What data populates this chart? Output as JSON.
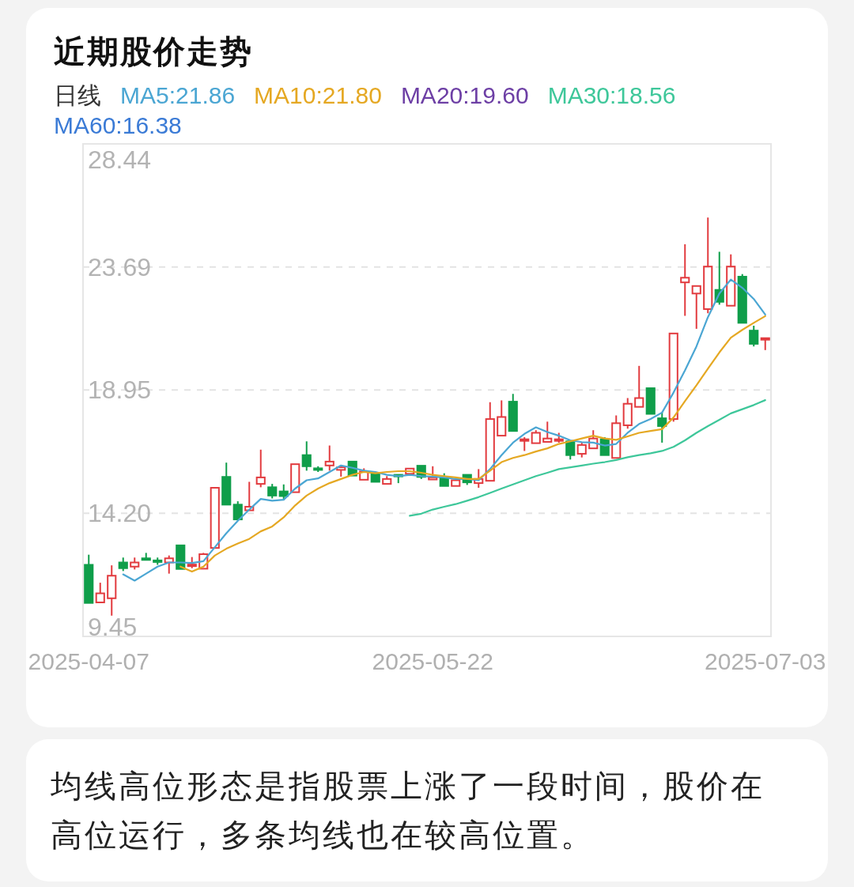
{
  "chart_data": {
    "type": "candlestick",
    "title": "近期股价走势",
    "legend_title": "日线",
    "legend": "top",
    "grid": "y",
    "categories": [
      "2025-04-07",
      null,
      null,
      null,
      null,
      null,
      null,
      null,
      null,
      null,
      null,
      null,
      null,
      null,
      null,
      null,
      null,
      null,
      null,
      null,
      null,
      null,
      null,
      null,
      null,
      null,
      null,
      null,
      null,
      null,
      "2025-05-22",
      null,
      null,
      null,
      null,
      null,
      null,
      null,
      null,
      null,
      null,
      null,
      null,
      null,
      null,
      null,
      null,
      null,
      null,
      null,
      null,
      null,
      null,
      null,
      null,
      null,
      null,
      null,
      null,
      "2025-07-03"
    ],
    "ohlc": [
      [
        12.21,
        12.6,
        10.74,
        10.74
      ],
      [
        10.76,
        11.52,
        10.76,
        11.11
      ],
      [
        10.92,
        12.19,
        10.25,
        11.79
      ],
      [
        12.3,
        12.49,
        11.97,
        12.08
      ],
      [
        12.14,
        12.49,
        12.03,
        12.3
      ],
      [
        12.46,
        12.67,
        12.42,
        12.42
      ],
      [
        12.38,
        12.49,
        12.21,
        12.34
      ],
      [
        12.3,
        12.57,
        11.87,
        12.46
      ],
      [
        12.96,
        12.96,
        12.05,
        12.05
      ],
      [
        12.16,
        12.51,
        12.08,
        12.22
      ],
      [
        12.06,
        12.67,
        12.06,
        12.62
      ],
      [
        12.86,
        15.18,
        12.86,
        15.18
      ],
      [
        15.6,
        16.15,
        14.53,
        14.53
      ],
      [
        14.53,
        14.66,
        13.96,
        13.96
      ],
      [
        14.31,
        15.41,
        14.31,
        14.45
      ],
      [
        15.33,
        16.65,
        15.2,
        15.58
      ],
      [
        15.2,
        15.33,
        14.77,
        14.88
      ],
      [
        15.04,
        15.31,
        14.72,
        14.86
      ],
      [
        15.01,
        16.09,
        15.01,
        16.09
      ],
      [
        16.44,
        16.97,
        15.84,
        16.01
      ],
      [
        15.93,
        16.01,
        15.79,
        15.88
      ],
      [
        16.04,
        16.81,
        15.84,
        16.19
      ],
      [
        15.87,
        16.06,
        15.61,
        15.97
      ],
      [
        16.19,
        16.19,
        15.65,
        15.65
      ],
      [
        15.49,
        15.93,
        15.49,
        15.81
      ],
      [
        15.74,
        15.74,
        15.41,
        15.41
      ],
      [
        15.33,
        15.63,
        15.33,
        15.52
      ],
      [
        15.68,
        15.68,
        15.36,
        15.63
      ],
      [
        15.72,
        15.92,
        15.72,
        15.92
      ],
      [
        16.03,
        16.03,
        15.52,
        15.6
      ],
      [
        15.5,
        16.01,
        15.5,
        15.58
      ],
      [
        15.58,
        15.74,
        15.25,
        15.25
      ],
      [
        15.25,
        15.47,
        15.25,
        15.47
      ],
      [
        15.68,
        15.68,
        15.29,
        15.39
      ],
      [
        15.36,
        15.9,
        15.18,
        15.52
      ],
      [
        15.45,
        18.48,
        15.45,
        17.83
      ],
      [
        17.19,
        18.55,
        17.19,
        17.91
      ],
      [
        18.5,
        18.8,
        17.37,
        17.37
      ],
      [
        17.01,
        17.13,
        16.6,
        17.05
      ],
      [
        16.9,
        17.4,
        16.9,
        17.3
      ],
      [
        16.95,
        17.73,
        16.95,
        17.08
      ],
      [
        17.01,
        17.3,
        16.92,
        17.05
      ],
      [
        16.97,
        16.97,
        16.27,
        16.44
      ],
      [
        16.49,
        16.92,
        16.35,
        16.83
      ],
      [
        16.7,
        17.4,
        16.7,
        17.08
      ],
      [
        17.05,
        17.13,
        16.44,
        16.44
      ],
      [
        16.33,
        17.97,
        16.33,
        17.67
      ],
      [
        17.59,
        18.64,
        17.46,
        18.42
      ],
      [
        18.3,
        19.88,
        18.3,
        18.64
      ],
      [
        19.02,
        19.02,
        18.03,
        18.03
      ],
      [
        17.86,
        18.1,
        16.92,
        17.56
      ],
      [
        17.83,
        21.13,
        17.73,
        21.13
      ],
      [
        23.1,
        24.57,
        21.81,
        23.28
      ],
      [
        22.67,
        22.96,
        21.31,
        22.96
      ],
      [
        22.07,
        25.6,
        21.91,
        23.71
      ],
      [
        22.81,
        24.28,
        22.24,
        22.35
      ],
      [
        22.2,
        24.18,
        22.2,
        23.71
      ],
      [
        23.32,
        23.42,
        21.54,
        21.54
      ],
      [
        21.24,
        21.43,
        20.63,
        20.73
      ],
      [
        20.9,
        20.95,
        20.49,
        20.95
      ]
    ],
    "colors": [
      "#0f9e4a",
      "#e23b3f",
      "#e23b3f",
      "#0f9e4a",
      "#e23b3f",
      "#0f9e4a",
      "#0f9e4a",
      "#e23b3f",
      "#0f9e4a",
      "#e23b3f",
      "#e23b3f",
      "#e23b3f",
      "#0f9e4a",
      "#0f9e4a",
      "#e23b3f",
      "#e23b3f",
      "#0f9e4a",
      "#0f9e4a",
      "#e23b3f",
      "#0f9e4a",
      "#0f9e4a",
      "#e23b3f",
      "#e23b3f",
      "#0f9e4a",
      "#e23b3f",
      "#0f9e4a",
      "#e23b3f",
      "#0f9e4a",
      "#e23b3f",
      "#0f9e4a",
      "#e23b3f",
      "#0f9e4a",
      "#e23b3f",
      "#0f9e4a",
      "#e23b3f",
      "#e23b3f",
      "#e23b3f",
      "#0f9e4a",
      "#e23b3f",
      "#e23b3f",
      "#e23b3f",
      "#e23b3f",
      "#0f9e4a",
      "#e23b3f",
      "#e23b3f",
      "#0f9e4a",
      "#e23b3f",
      "#e23b3f",
      "#e23b3f",
      "#0f9e4a",
      "#0f9e4a",
      "#e23b3f",
      "#e23b3f",
      "#e23b3f",
      "#e23b3f",
      "#0f9e4a",
      "#e23b3f",
      "#0f9e4a",
      "#0f9e4a",
      "#e23b3f"
    ],
    "series": [
      {
        "name": "MA5:21.86",
        "type": "line",
        "color": "#4ba6d3",
        "values": [
          null,
          null,
          null,
          11.84,
          11.6,
          11.87,
          12.14,
          12.3,
          12.3,
          12.28,
          12.35,
          12.89,
          13.43,
          13.91,
          14.34,
          14.75,
          14.68,
          14.72,
          15.15,
          15.47,
          15.54,
          15.79,
          16.04,
          15.95,
          15.84,
          15.79,
          15.68,
          15.63,
          15.68,
          15.63,
          15.61,
          15.58,
          15.52,
          15.52,
          15.47,
          15.9,
          16.44,
          16.92,
          17.26,
          17.51,
          17.33,
          17.19,
          17.01,
          16.94,
          16.92,
          16.81,
          16.87,
          17.3,
          17.64,
          17.83,
          18.08,
          18.85,
          19.71,
          20.63,
          21.76,
          22.67,
          23.21,
          22.89,
          22.46,
          21.86
        ]
      },
      {
        "name": "MA10:21.80",
        "type": "line",
        "color": "#e5a823",
        "values": [
          null,
          null,
          null,
          null,
          null,
          null,
          null,
          null,
          12.14,
          11.95,
          12.14,
          12.57,
          12.83,
          13.03,
          13.21,
          13.5,
          13.69,
          14.04,
          14.5,
          14.88,
          15.15,
          15.36,
          15.52,
          15.68,
          15.79,
          15.74,
          15.79,
          15.82,
          15.82,
          15.76,
          15.68,
          15.63,
          15.58,
          15.52,
          15.52,
          15.84,
          16.17,
          16.33,
          16.44,
          16.58,
          16.7,
          16.87,
          16.97,
          17.08,
          17.19,
          17.08,
          17.03,
          17.16,
          17.3,
          17.37,
          17.44,
          17.89,
          18.52,
          19.13,
          19.77,
          20.4,
          20.97,
          21.27,
          21.54,
          21.8
        ]
      },
      {
        "name": "MA20:19.60",
        "type": "line",
        "color": "#6d3fa5",
        "values": [
          null,
          null,
          null,
          null,
          null,
          null,
          null,
          null,
          null,
          null,
          null,
          null,
          null,
          null,
          null,
          null,
          null,
          null,
          null,
          null,
          null,
          null,
          null,
          null,
          null,
          null,
          null,
          null,
          null,
          null,
          null,
          null,
          null,
          null,
          null,
          null,
          null,
          null,
          null,
          null,
          null,
          null,
          null,
          null,
          null,
          null,
          null,
          null,
          null,
          null,
          null,
          null,
          null,
          null,
          null,
          null,
          null,
          null,
          null,
          null
        ]
      },
      {
        "name": "MA30:18.56",
        "type": "line",
        "color": "#3ec79a",
        "values": [
          null,
          null,
          null,
          null,
          null,
          null,
          null,
          null,
          null,
          null,
          null,
          null,
          null,
          null,
          null,
          null,
          null,
          null,
          null,
          null,
          null,
          null,
          null,
          null,
          null,
          null,
          null,
          null,
          14.1,
          14.18,
          14.34,
          14.45,
          14.55,
          14.68,
          14.82,
          14.98,
          15.15,
          15.31,
          15.47,
          15.63,
          15.76,
          15.9,
          15.97,
          16.04,
          16.11,
          16.17,
          16.25,
          16.36,
          16.44,
          16.51,
          16.6,
          16.76,
          17.01,
          17.3,
          17.56,
          17.8,
          18.05,
          18.21,
          18.37,
          18.56
        ]
      },
      {
        "name": "MA60:16.38",
        "type": "line",
        "color": "#3b7bd6",
        "values": [
          null,
          null,
          null,
          null,
          null,
          null,
          null,
          null,
          null,
          null,
          null,
          null,
          null,
          null,
          null,
          null,
          null,
          null,
          null,
          null,
          null,
          null,
          null,
          null,
          null,
          null,
          null,
          null,
          null,
          null,
          null,
          null,
          null,
          null,
          null,
          null,
          null,
          null,
          null,
          null,
          null,
          null,
          null,
          null,
          null,
          null,
          null,
          null,
          null,
          null,
          null,
          null,
          null,
          null,
          null,
          null,
          null,
          null,
          null,
          null
        ]
      }
    ],
    "ylim": [
      9.45,
      28.44
    ],
    "yticks": [
      9.45,
      {
        "value": 14.2,
        "label": "14.20"
      },
      18.95,
      23.69,
      28.44
    ],
    "annotations": [
      "均线高位形态是指股票上涨了一段时间，股价在高位运行，多条均线也在较高位置。"
    ]
  }
}
